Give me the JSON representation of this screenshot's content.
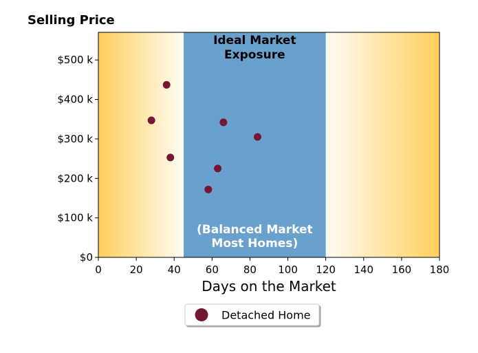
{
  "chart_data": {
    "type": "scatter",
    "title": "Selling Price",
    "xlabel": "Days on the Market",
    "ylabel": "",
    "xlim": [
      0,
      180
    ],
    "ylim": [
      0,
      570000
    ],
    "xticks": [
      0,
      20,
      40,
      60,
      80,
      100,
      120,
      140,
      160,
      180
    ],
    "xtick_labels": [
      "0",
      "20",
      "40",
      "60",
      "80",
      "100",
      "120",
      "140",
      "160",
      "180"
    ],
    "yticks": [
      0,
      100000,
      200000,
      300000,
      400000,
      500000
    ],
    "ytick_labels": [
      "$0",
      "$100 k",
      "$200 k",
      "$300 k",
      "$400 k",
      "$500 k"
    ],
    "grid": false,
    "legend_placement": "bottom-center",
    "band": {
      "x_start": 45,
      "x_end": 120,
      "top_label_line1": "Ideal Market",
      "top_label_line2": "Exposure",
      "bottom_label_line1": "(Balanced Market",
      "bottom_label_line2": "Most Homes)"
    },
    "series": [
      {
        "name": "Detached Home",
        "points": [
          {
            "x": 36,
            "y": 437000
          },
          {
            "x": 28,
            "y": 347000
          },
          {
            "x": 38,
            "y": 253000
          },
          {
            "x": 66,
            "y": 342000
          },
          {
            "x": 84,
            "y": 305000
          },
          {
            "x": 63,
            "y": 225000
          },
          {
            "x": 58,
            "y": 172000
          }
        ]
      }
    ]
  },
  "colors": {
    "band": "#6aa0cd",
    "gradient_edge": "#ffcf5c",
    "gradient_center": "#fffdf5",
    "marker": "#741732",
    "band_top_text": "#000000",
    "band_bottom_text": "#ffffff"
  }
}
